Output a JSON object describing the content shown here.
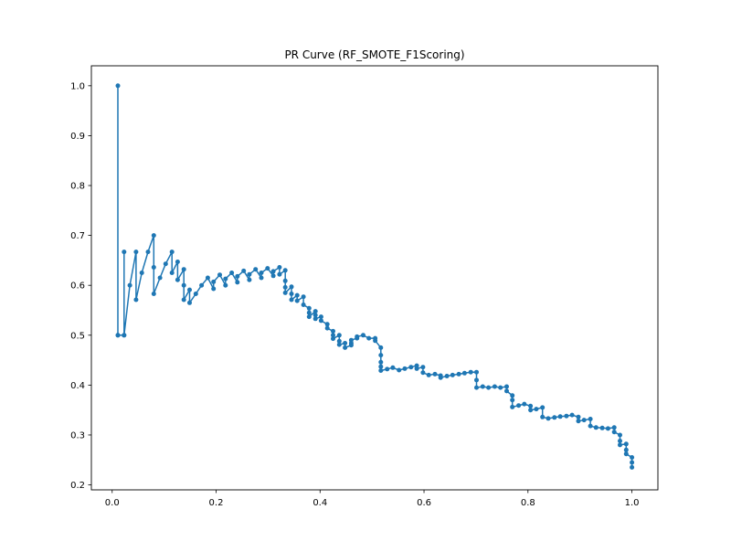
{
  "chart_data": {
    "type": "line",
    "title": "PR Curve (RF_SMOTE_F1Scoring)",
    "xlabel": "",
    "ylabel": "",
    "xlim": [
      -0.04,
      1.05
    ],
    "ylim": [
      0.19,
      1.04
    ],
    "x_ticks": [
      "0.0",
      "0.2",
      "0.4",
      "0.6",
      "0.8",
      "1.0"
    ],
    "y_ticks": [
      "0.2",
      "0.3",
      "0.4",
      "0.5",
      "0.6",
      "0.7",
      "0.8",
      "0.9",
      "1.0"
    ],
    "grid": false,
    "legend": "none",
    "marker": "circle",
    "color": "#1f77b4",
    "series": [
      {
        "x": [
          0.011,
          0.011,
          0.011,
          0.023,
          0.023,
          0.023,
          0.034,
          0.046,
          0.046,
          0.057,
          0.069,
          0.08,
          0.08,
          0.08,
          0.092,
          0.103,
          0.115,
          0.115,
          0.126,
          0.126,
          0.138,
          0.138,
          0.138,
          0.149,
          0.149,
          0.161,
          0.172,
          0.184,
          0.195,
          0.195,
          0.207,
          0.218,
          0.218,
          0.23,
          0.241,
          0.241,
          0.253,
          0.264,
          0.264,
          0.276,
          0.287,
          0.287,
          0.299,
          0.31,
          0.31,
          0.322,
          0.322,
          0.333,
          0.333,
          0.333,
          0.333,
          0.345,
          0.345,
          0.345,
          0.356,
          0.356,
          0.368,
          0.368,
          0.379,
          0.379,
          0.379,
          0.391,
          0.391,
          0.391,
          0.402,
          0.402,
          0.414,
          0.414,
          0.425,
          0.425,
          0.425,
          0.437,
          0.437,
          0.437,
          0.448,
          0.448,
          0.46,
          0.46,
          0.46,
          0.471,
          0.471,
          0.483,
          0.494,
          0.506,
          0.506,
          0.517,
          0.517,
          0.517,
          0.517,
          0.517,
          0.529,
          0.54,
          0.552,
          0.563,
          0.575,
          0.586,
          0.586,
          0.598,
          0.598,
          0.609,
          0.621,
          0.632,
          0.632,
          0.644,
          0.655,
          0.667,
          0.678,
          0.69,
          0.701,
          0.701,
          0.701,
          0.713,
          0.724,
          0.736,
          0.747,
          0.759,
          0.759,
          0.77,
          0.77,
          0.77,
          0.782,
          0.793,
          0.805,
          0.805,
          0.816,
          0.828,
          0.828,
          0.839,
          0.851,
          0.862,
          0.874,
          0.885,
          0.897,
          0.897,
          0.908,
          0.92,
          0.92,
          0.931,
          0.943,
          0.954,
          0.966,
          0.966,
          0.977,
          0.977,
          0.977,
          0.989,
          0.989,
          0.989,
          1.0,
          1.0,
          1.0
        ],
        "y": [
          1.0,
          0.5,
          0.5,
          0.5,
          0.667,
          0.5,
          0.6,
          0.667,
          0.571,
          0.625,
          0.667,
          0.7,
          0.636,
          0.583,
          0.615,
          0.643,
          0.667,
          0.625,
          0.647,
          0.611,
          0.632,
          0.6,
          0.571,
          0.591,
          0.565,
          0.583,
          0.6,
          0.615,
          0.593,
          0.607,
          0.621,
          0.6,
          0.613,
          0.625,
          0.606,
          0.618,
          0.629,
          0.611,
          0.622,
          0.632,
          0.615,
          0.625,
          0.634,
          0.619,
          0.628,
          0.636,
          0.622,
          0.63,
          0.609,
          0.596,
          0.585,
          0.597,
          0.583,
          0.571,
          0.58,
          0.569,
          0.577,
          0.561,
          0.554,
          0.545,
          0.537,
          0.548,
          0.54,
          0.533,
          0.537,
          0.529,
          0.522,
          0.514,
          0.508,
          0.5,
          0.493,
          0.5,
          0.488,
          0.481,
          0.484,
          0.475,
          0.48,
          0.484,
          0.49,
          0.494,
          0.497,
          0.5,
          0.494,
          0.494,
          0.489,
          0.475,
          0.46,
          0.446,
          0.437,
          0.429,
          0.432,
          0.435,
          0.43,
          0.433,
          0.436,
          0.439,
          0.433,
          0.436,
          0.425,
          0.42,
          0.422,
          0.419,
          0.415,
          0.418,
          0.42,
          0.422,
          0.424,
          0.426,
          0.426,
          0.41,
          0.395,
          0.397,
          0.395,
          0.397,
          0.395,
          0.397,
          0.388,
          0.379,
          0.37,
          0.356,
          0.359,
          0.362,
          0.358,
          0.35,
          0.352,
          0.355,
          0.336,
          0.333,
          0.335,
          0.337,
          0.338,
          0.34,
          0.336,
          0.328,
          0.33,
          0.332,
          0.318,
          0.315,
          0.314,
          0.313,
          0.315,
          0.306,
          0.3,
          0.288,
          0.28,
          0.282,
          0.27,
          0.262,
          0.255,
          0.245,
          0.235
        ]
      }
    ]
  }
}
